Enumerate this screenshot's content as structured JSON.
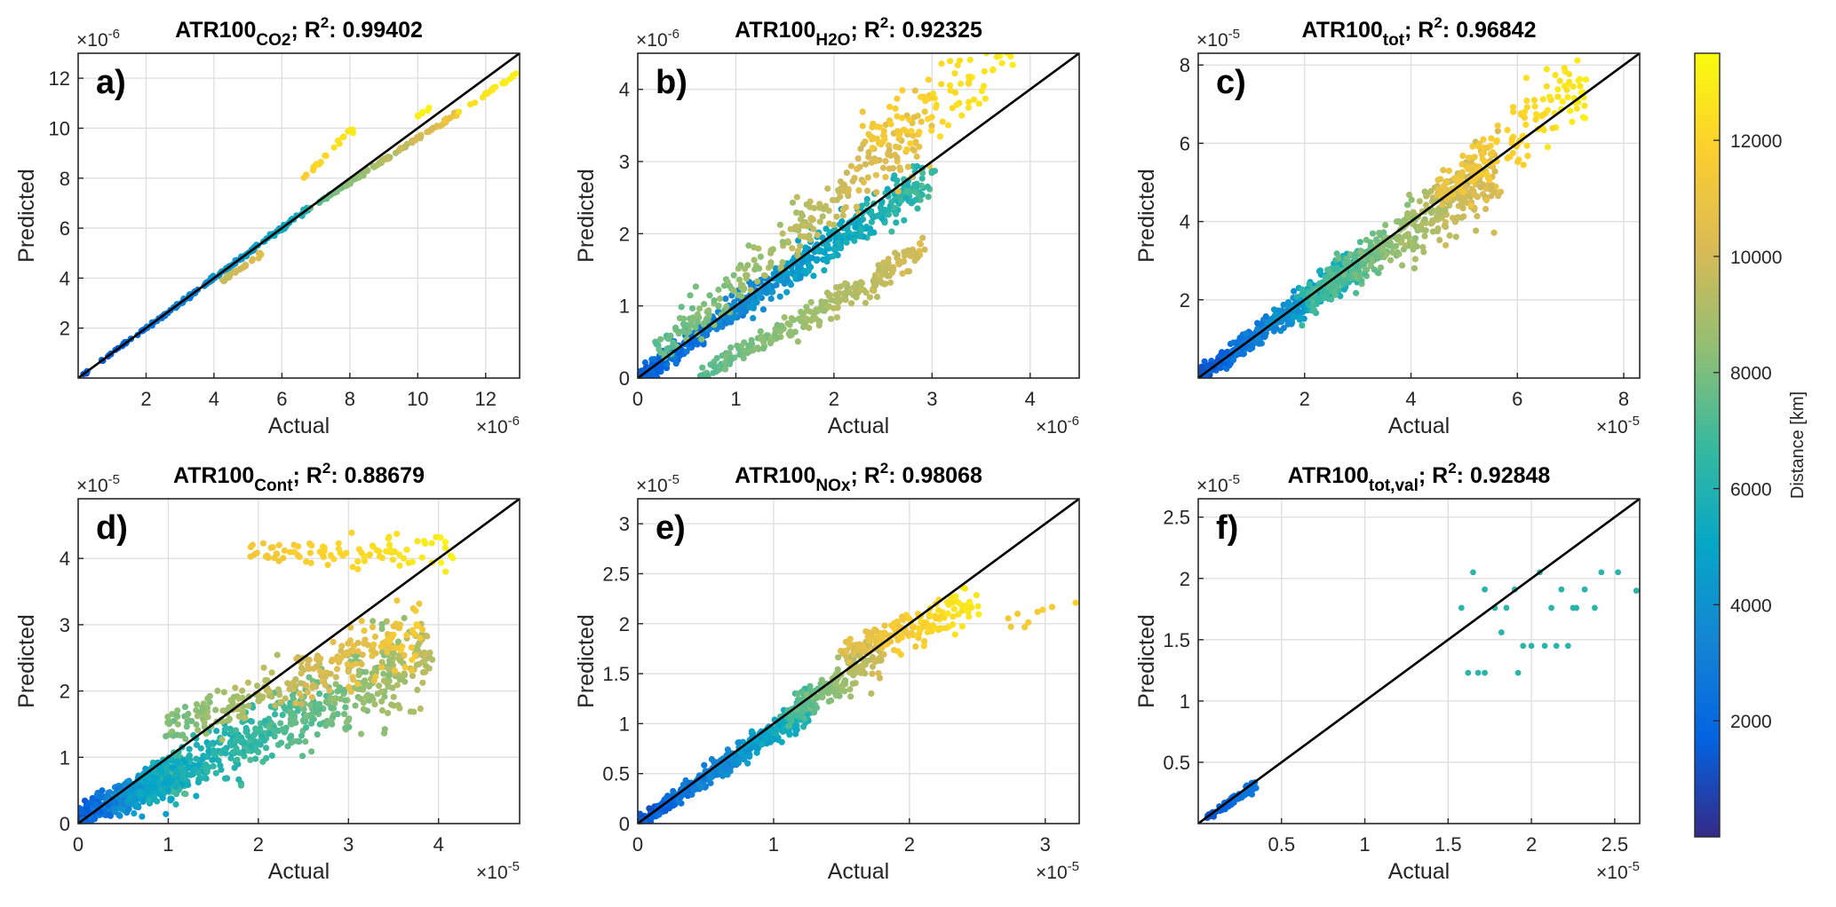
{
  "colormap": {
    "name": "parula",
    "stops": [
      "#352a87",
      "#0363e1",
      "#1485d4",
      "#06a7c6",
      "#38b99e",
      "#92bf73",
      "#d9ba56",
      "#fcce2e",
      "#f9fb0e"
    ],
    "range": [
      0,
      13500
    ]
  },
  "colorbar": {
    "label": "Distance [km]",
    "ticks": [
      2000,
      4000,
      6000,
      8000,
      10000,
      12000
    ],
    "tick_labels": [
      "2000",
      "4000",
      "6000",
      "8000",
      "10000",
      "12000"
    ]
  },
  "chart_data": [
    {
      "type": "scatter",
      "panel": "a)",
      "title": {
        "base": "ATR100",
        "sub": "CO2",
        "r2": "0.99402"
      },
      "xlabel": "Actual",
      "ylabel": "Predicted",
      "exponent": "×10",
      "exponent_power": "-6",
      "xlim": [
        0,
        13
      ],
      "ylim": [
        0,
        13
      ],
      "xticks": [
        2,
        4,
        6,
        8,
        10,
        12
      ],
      "yticks": [
        2,
        4,
        6,
        8,
        10,
        12
      ],
      "grid": true,
      "reference_line": "y = x",
      "clusters": [
        {
          "x0": 0.1,
          "x1": 6.8,
          "slope": 1.0,
          "offset": 0,
          "spread": 0.05,
          "n": 170,
          "c0": 500,
          "c1": 6500
        },
        {
          "x0": 4.2,
          "x1": 5.4,
          "slope": 0.92,
          "offset": 0,
          "spread": 0.08,
          "n": 25,
          "c0": 9500,
          "c1": 10500
        },
        {
          "x0": 6.8,
          "x1": 11.2,
          "slope": 0.88,
          "offset": 0.8,
          "spread": 0.06,
          "n": 120,
          "c0": 7000,
          "c1": 11500
        },
        {
          "x0": 11.2,
          "x1": 13.0,
          "slope": 0.88,
          "offset": 0.8,
          "spread": 0.06,
          "n": 20,
          "c0": 12300,
          "c1": 13200
        },
        {
          "x0": 6.6,
          "x1": 8.1,
          "slope": 1.35,
          "offset": -0.95,
          "spread": 0.08,
          "n": 22,
          "c0": 11500,
          "c1": 13000
        },
        {
          "x0": 10.0,
          "x1": 10.5,
          "slope": 1.0,
          "offset": 0.5,
          "spread": 0.05,
          "n": 6,
          "c0": 13000,
          "c1": 13300
        }
      ]
    },
    {
      "type": "scatter",
      "panel": "b)",
      "title": {
        "base": "ATR100",
        "sub": "H2O",
        "r2": "0.92325"
      },
      "xlabel": "Actual",
      "ylabel": "Predicted",
      "exponent": "×10",
      "exponent_power": "-6",
      "xlim": [
        0,
        4.5
      ],
      "ylim": [
        0,
        4.5
      ],
      "xticks": [
        0,
        1,
        2,
        3,
        4
      ],
      "yticks": [
        0,
        1,
        2,
        3,
        4
      ],
      "grid": true,
      "reference_line": "y = x",
      "clusters": [
        {
          "x0": 0.0,
          "x1": 3.0,
          "slope": 0.95,
          "offset": 0.0,
          "spread": 0.16,
          "n": 600,
          "c0": 1000,
          "c1": 7500
        },
        {
          "x0": 0.2,
          "x1": 3.0,
          "slope": 1.15,
          "offset": 0.15,
          "spread": 0.25,
          "n": 260,
          "c0": 7000,
          "c1": 11500
        },
        {
          "x0": 0.6,
          "x1": 2.9,
          "slope": 0.75,
          "offset": -0.45,
          "spread": 0.13,
          "n": 260,
          "c0": 7000,
          "c1": 10500
        },
        {
          "x0": 2.3,
          "x1": 3.8,
          "slope": 0.7,
          "offset": 1.7,
          "spread": 0.35,
          "n": 90,
          "c0": 11000,
          "c1": 13300
        }
      ]
    },
    {
      "type": "scatter",
      "panel": "c)",
      "title": {
        "base": "ATR100",
        "sub": "tot",
        "r2": "0.96842"
      },
      "xlabel": "Actual",
      "ylabel": "Predicted",
      "exponent": "×10",
      "exponent_power": "-5",
      "xlim": [
        0,
        8.3
      ],
      "ylim": [
        0,
        8.3
      ],
      "xticks": [
        2,
        4,
        6,
        8
      ],
      "yticks": [
        2,
        4,
        6,
        8
      ],
      "grid": true,
      "reference_line": "y = x",
      "clusters": [
        {
          "x0": 0.0,
          "x1": 3.0,
          "slope": 0.98,
          "offset": 0.0,
          "spread": 0.22,
          "n": 500,
          "c0": 500,
          "c1": 7000
        },
        {
          "x0": 2.0,
          "x1": 5.6,
          "slope": 0.93,
          "offset": 0.1,
          "spread": 0.45,
          "n": 450,
          "c0": 6000,
          "c1": 11000
        },
        {
          "x0": 4.5,
          "x1": 7.3,
          "slope": 1.0,
          "offset": 0.2,
          "spread": 0.55,
          "n": 170,
          "c0": 10500,
          "c1": 13300
        }
      ]
    },
    {
      "type": "scatter",
      "panel": "d)",
      "title": {
        "base": "ATR100",
        "sub": "Cont",
        "r2": "0.88679"
      },
      "xlabel": "Actual",
      "ylabel": "Predicted",
      "exponent": "×10",
      "exponent_power": "-5",
      "xlim": [
        0,
        4.9
      ],
      "ylim": [
        0,
        4.9
      ],
      "xticks": [
        0,
        1,
        2,
        3,
        4
      ],
      "yticks": [
        0,
        1,
        2,
        3,
        4
      ],
      "grid": true,
      "reference_line": "y = x",
      "clusters": [
        {
          "x0": 0.0,
          "x1": 1.2,
          "slope": 0.6,
          "offset": 0.1,
          "spread": 0.18,
          "n": 500,
          "c0": 500,
          "c1": 8000
        },
        {
          "x0": 0.8,
          "x1": 3.9,
          "slope": 0.65,
          "offset": 0.05,
          "spread": 0.35,
          "n": 550,
          "c0": 4500,
          "c1": 10000
        },
        {
          "x0": 1.0,
          "x1": 3.8,
          "slope": 0.55,
          "offset": 0.85,
          "spread": 0.3,
          "n": 250,
          "c0": 7500,
          "c1": 12000
        },
        {
          "x0": 1.9,
          "x1": 4.2,
          "slope": 0.0,
          "offset": 4.1,
          "spread": 0.18,
          "n": 90,
          "c0": 11000,
          "c1": 13300
        }
      ]
    },
    {
      "type": "scatter",
      "panel": "e)",
      "title": {
        "base": "ATR100",
        "sub": "NOx",
        "r2": "0.98068"
      },
      "xlabel": "Actual",
      "ylabel": "Predicted",
      "exponent": "×10",
      "exponent_power": "-5",
      "xlim": [
        0,
        3.25
      ],
      "ylim": [
        0,
        3.25
      ],
      "xticks": [
        0,
        1,
        2,
        3
      ],
      "yticks": [
        0,
        0.5,
        1,
        1.5,
        2,
        2.5,
        3
      ],
      "ytick_labels": [
        "0",
        "0.5",
        "1",
        "1.5",
        "2",
        "2.5",
        "3"
      ],
      "grid": true,
      "reference_line": "y = x",
      "clusters": [
        {
          "x0": 0.0,
          "x1": 1.3,
          "slope": 0.92,
          "offset": 0.0,
          "spread": 0.07,
          "n": 550,
          "c0": 500,
          "c1": 7000
        },
        {
          "x0": 1.1,
          "x1": 1.8,
          "slope": 0.98,
          "offset": 0.0,
          "spread": 0.13,
          "n": 220,
          "c0": 6500,
          "c1": 10500
        },
        {
          "x0": 1.5,
          "x1": 2.5,
          "slope": 0.45,
          "offset": 1.05,
          "spread": 0.13,
          "n": 160,
          "c0": 10000,
          "c1": 13300
        },
        {
          "x0": 2.4,
          "x1": 3.3,
          "slope": 0.1,
          "offset": 1.75,
          "spread": 0.12,
          "n": 10,
          "c0": 11000,
          "c1": 12000
        }
      ]
    },
    {
      "type": "scatter",
      "panel": "f)",
      "title": {
        "base": "ATR100",
        "sub": "tot,val",
        "r2": "0.92848"
      },
      "xlabel": "Actual",
      "ylabel": "Predicted",
      "exponent": "×10",
      "exponent_power": "-5",
      "xlim": [
        0,
        2.65
      ],
      "ylim": [
        0,
        2.65
      ],
      "xticks": [
        0.5,
        1,
        1.5,
        2,
        2.5
      ],
      "yticks": [
        0.5,
        1,
        1.5,
        2,
        2.5
      ],
      "xtick_labels": [
        "0.5",
        "1",
        "1.5",
        "2",
        "2.5"
      ],
      "ytick_labels": [
        "0.5",
        "1",
        "1.5",
        "2",
        "2.5"
      ],
      "grid": true,
      "reference_line": "y = x",
      "clusters": [
        {
          "x0": 0.05,
          "x1": 0.35,
          "slope": 0.93,
          "offset": 0.0,
          "spread": 0.025,
          "n": 70,
          "c0": 1000,
          "c1": 3000
        }
      ],
      "points": [
        {
          "x": 1.58,
          "y": 1.76
        },
        {
          "x": 1.65,
          "y": 2.05
        },
        {
          "x": 1.72,
          "y": 1.91
        },
        {
          "x": 1.78,
          "y": 1.76
        },
        {
          "x": 1.85,
          "y": 1.76
        },
        {
          "x": 1.9,
          "y": 1.91
        },
        {
          "x": 1.95,
          "y": 1.45
        },
        {
          "x": 2.0,
          "y": 1.45
        },
        {
          "x": 2.05,
          "y": 2.05
        },
        {
          "x": 2.08,
          "y": 1.45
        },
        {
          "x": 2.12,
          "y": 1.76
        },
        {
          "x": 2.18,
          "y": 1.91
        },
        {
          "x": 2.22,
          "y": 1.45
        },
        {
          "x": 2.27,
          "y": 1.76
        },
        {
          "x": 2.32,
          "y": 1.91
        },
        {
          "x": 2.38,
          "y": 1.76
        },
        {
          "x": 2.42,
          "y": 2.05
        },
        {
          "x": 2.52,
          "y": 2.05
        },
        {
          "x": 2.63,
          "y": 1.9
        },
        {
          "x": 1.62,
          "y": 1.23
        },
        {
          "x": 1.68,
          "y": 1.23
        },
        {
          "x": 1.72,
          "y": 1.23
        },
        {
          "x": 1.92,
          "y": 1.23
        },
        {
          "x": 2.15,
          "y": 1.45
        },
        {
          "x": 1.82,
          "y": 1.56
        },
        {
          "x": 2.25,
          "y": 1.76
        }
      ],
      "points_color_value": 6300
    }
  ]
}
